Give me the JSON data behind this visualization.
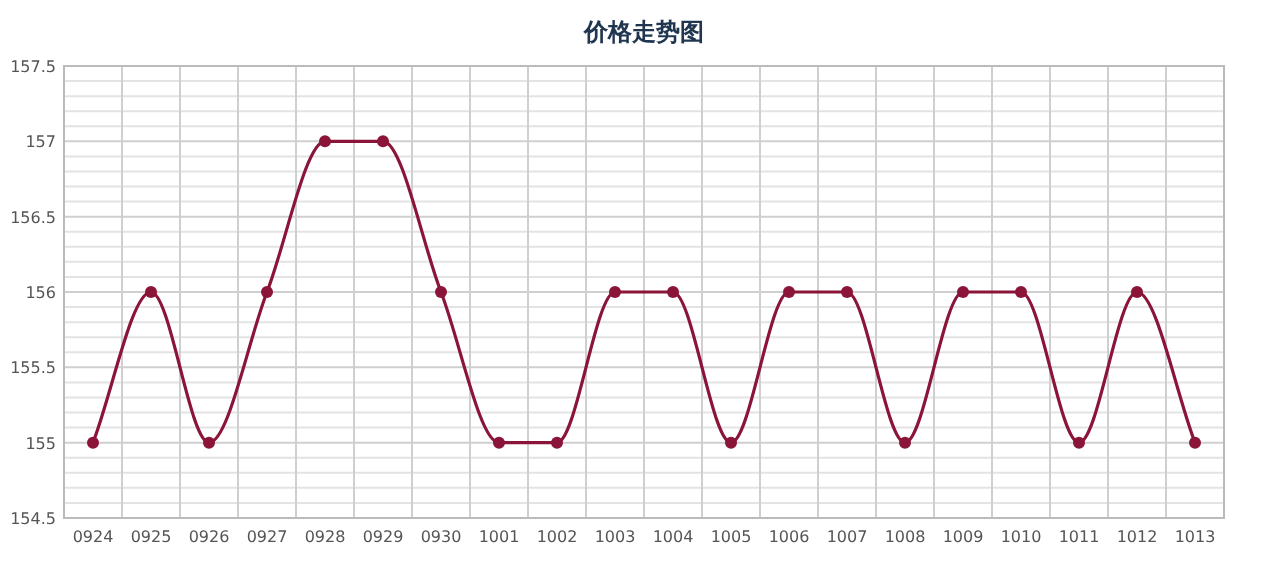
{
  "chart_data": {
    "type": "line",
    "title": "价格走势图",
    "categories": [
      "0924",
      "0925",
      "0926",
      "0927",
      "0928",
      "0929",
      "0930",
      "1001",
      "1002",
      "1003",
      "1004",
      "1005",
      "1006",
      "1007",
      "1008",
      "1009",
      "1010",
      "1011",
      "1012",
      "1013"
    ],
    "series": [
      {
        "color": "#8b1538",
        "values": [
          155,
          156,
          155,
          156,
          157,
          157,
          156,
          155,
          155,
          156,
          156,
          155,
          156,
          156,
          155,
          156,
          156,
          155,
          156,
          155
        ]
      }
    ],
    "ylim": [
      154.5,
      157.5
    ],
    "yticks": [
      154.5,
      155,
      155.5,
      156,
      156.5,
      157,
      157.5
    ],
    "grid": true,
    "marker": "circle"
  }
}
